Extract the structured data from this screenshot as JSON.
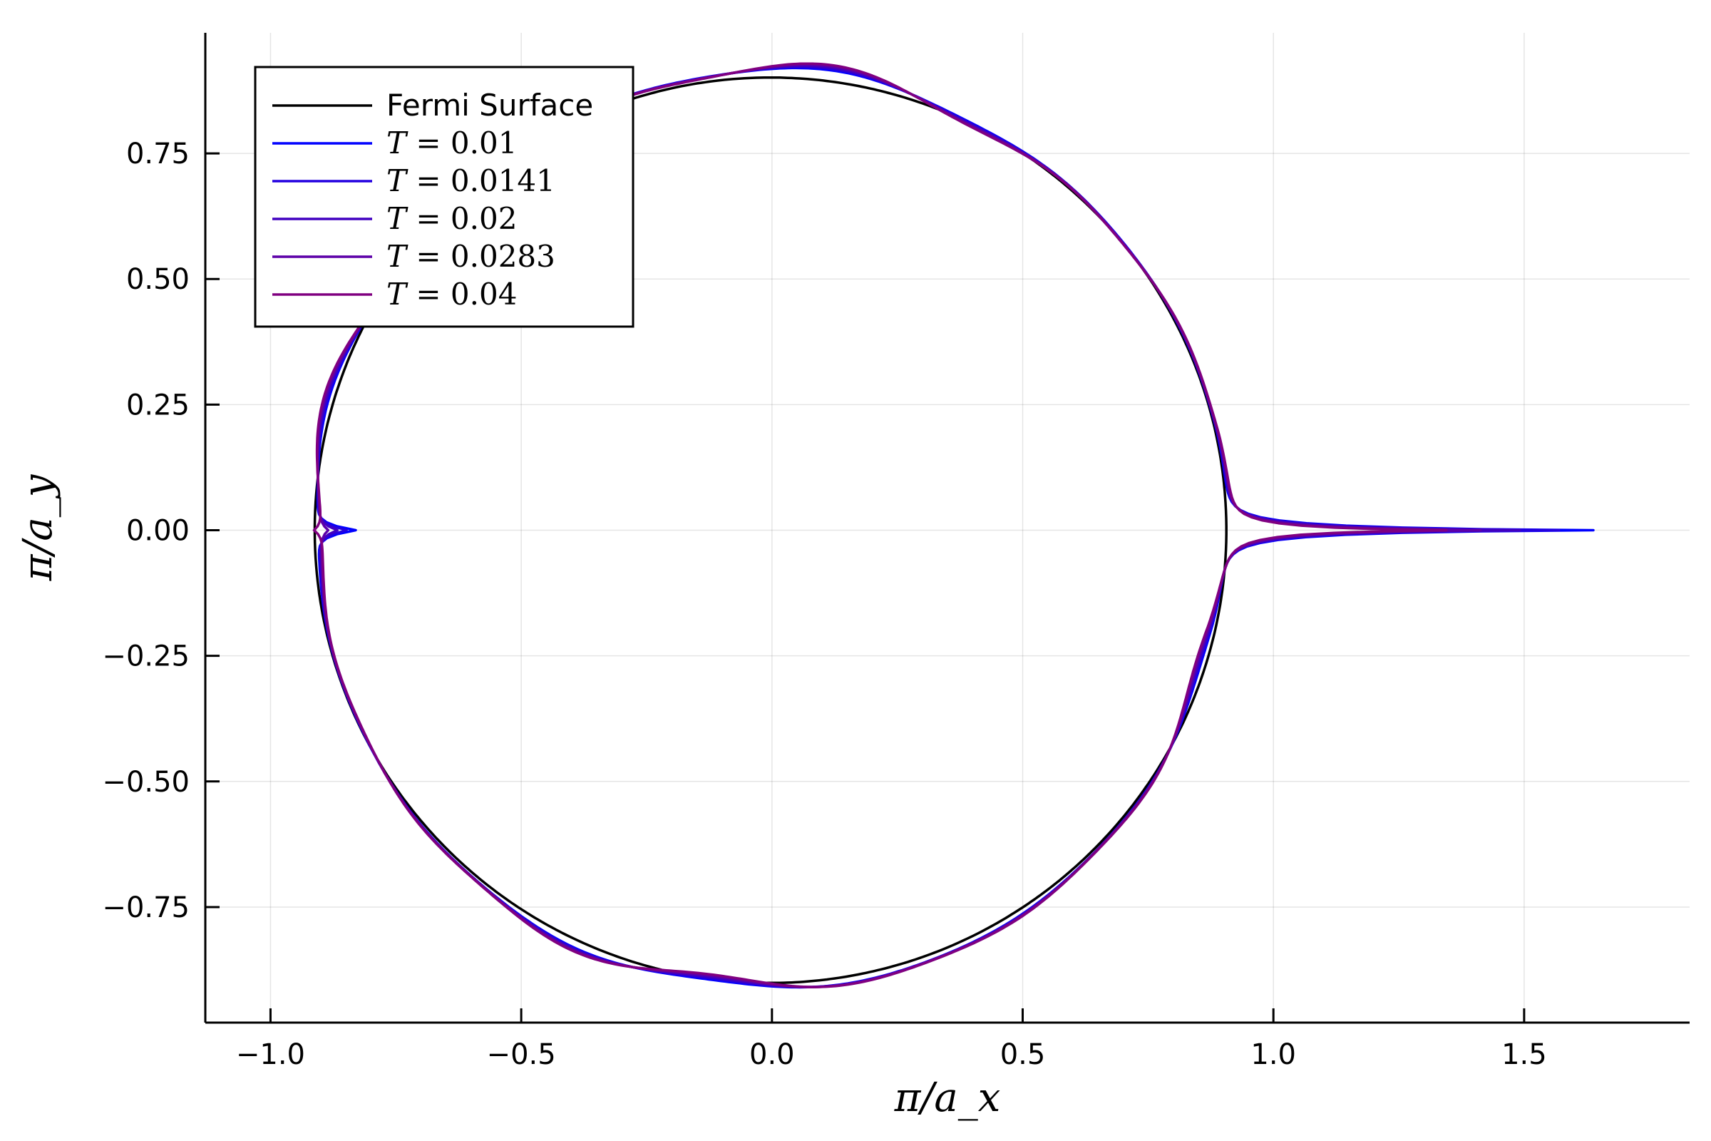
{
  "chart_data": {
    "type": "line",
    "title": "",
    "xlabel": "π/a_x",
    "ylabel": "π/a_y",
    "xlim": [
      -1.13,
      1.83
    ],
    "ylim": [
      -0.98,
      0.99
    ],
    "xticks": [
      -1.0,
      -0.5,
      0.0,
      0.5,
      1.0,
      1.5
    ],
    "xtick_labels": [
      "−1.0",
      "−0.5",
      "0.0",
      "0.5",
      "1.0",
      "1.5"
    ],
    "yticks": [
      -0.75,
      -0.5,
      -0.25,
      0.0,
      0.25,
      0.5,
      0.75
    ],
    "ytick_labels": [
      "−0.75",
      "−0.50",
      "−0.25",
      "0.00",
      "0.25",
      "0.50",
      "0.75"
    ],
    "grid": true,
    "legend_position": "top-left",
    "series": [
      {
        "name": "Fermi Surface",
        "label_prefix": "",
        "label_value": "",
        "color": "#000000",
        "kind": "fermi"
      },
      {
        "name": "T = 0.01",
        "label_prefix": "T = ",
        "label_value": "0.01",
        "color": "#0000ff",
        "kind": "thermal",
        "right_tip_x": 1.63,
        "left_tip_x": -0.83,
        "bump": 1.0
      },
      {
        "name": "T = 0.0141",
        "label_prefix": "T = ",
        "label_value": "0.0141",
        "color": "#2300e0",
        "kind": "thermal",
        "right_tip_x": 1.56,
        "left_tip_x": -0.85,
        "bump": 1.25
      },
      {
        "name": "T = 0.02",
        "label_prefix": "T = ",
        "label_value": "0.02",
        "color": "#4000c0",
        "kind": "thermal",
        "right_tip_x": 1.48,
        "left_tip_x": -0.87,
        "bump": 1.5
      },
      {
        "name": "T = 0.0283",
        "label_prefix": "T = ",
        "label_value": "0.0283",
        "color": "#5d00a8",
        "kind": "thermal",
        "right_tip_x": 1.4,
        "left_tip_x": -0.89,
        "bump": 1.75
      },
      {
        "name": "T = 0.04",
        "label_prefix": "T = ",
        "label_value": "0.04",
        "color": "#800080",
        "kind": "thermal",
        "right_tip_x": 1.33,
        "left_tip_x": -0.92,
        "bump": 2.0
      }
    ]
  }
}
